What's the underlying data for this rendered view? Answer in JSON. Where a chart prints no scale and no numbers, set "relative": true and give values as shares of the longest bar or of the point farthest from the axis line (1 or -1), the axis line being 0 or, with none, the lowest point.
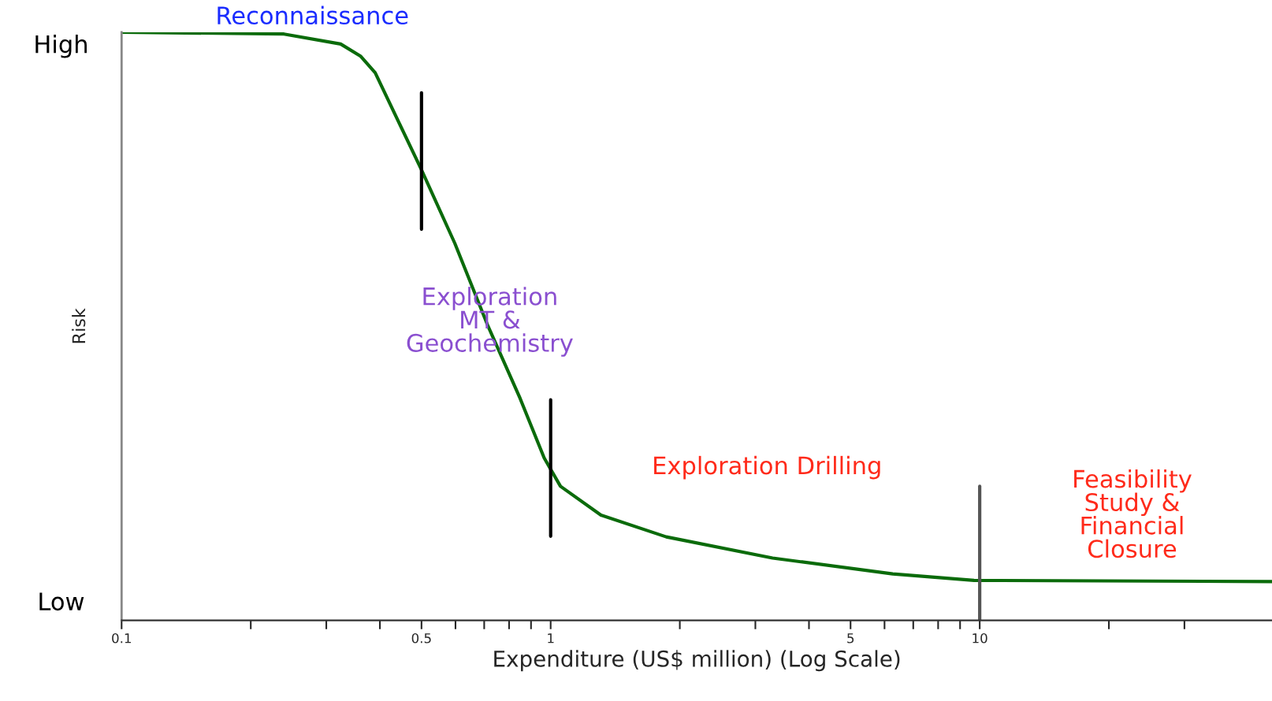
{
  "chart_data": {
    "type": "line",
    "relative": true,
    "log": "x",
    "xlabel": "Expenditure (US$ million) (Log Scale)",
    "ylabel": "Risk",
    "xlim": [
      0.1,
      48
    ],
    "xticks": [
      0.1,
      {
        "value": 0.2,
        "label": null
      },
      {
        "value": 0.3,
        "label": null
      },
      {
        "value": 0.4,
        "label": null
      },
      0.5,
      {
        "value": 0.6,
        "label": null
      },
      {
        "value": 0.7,
        "label": null
      },
      {
        "value": 0.8,
        "label": null
      },
      {
        "value": 0.9,
        "label": null
      },
      1,
      {
        "value": 2,
        "label": null
      },
      {
        "value": 3,
        "label": null
      },
      {
        "value": 4,
        "label": null
      },
      5,
      {
        "value": 6,
        "label": null
      },
      {
        "value": 7,
        "label": null
      },
      {
        "value": 8,
        "label": null
      },
      {
        "value": 9,
        "label": null
      },
      10,
      {
        "value": 20,
        "label": null
      },
      {
        "value": 30,
        "label": null
      }
    ],
    "series": [
      {
        "color": "#0b6b0b",
        "x": [
          0.1,
          0.239,
          0.324,
          0.361,
          0.39,
          0.5,
          0.598,
          0.712,
          0.847,
          0.966,
          1.054,
          1.31,
          1.86,
          3.29,
          6.27,
          9.7,
          48
        ],
        "values": [
          1.0,
          0.997,
          0.98,
          0.959,
          0.931,
          0.766,
          0.641,
          0.503,
          0.379,
          0.276,
          0.228,
          0.179,
          0.142,
          0.106,
          0.079,
          0.068,
          0.066
        ]
      },
      {
        "color": "#000000",
        "x": [
          0.5,
          0.5
        ],
        "values": [
          0.897,
          0.665
        ]
      },
      {
        "color": "#000000",
        "x": [
          1,
          1
        ],
        "values": [
          0.375,
          0.143
        ]
      },
      {
        "color": "#555555",
        "x": [
          10,
          10
        ],
        "values": [
          0.228,
          0
        ]
      }
    ],
    "annotations": [
      "Reconnaissance",
      "Exploration\nMT &\nGeochemistry",
      "Exploration Drilling",
      "Feasibility\nStudy &\nFinancial\nClosure",
      "High",
      "Low"
    ],
    "grid": false
  }
}
